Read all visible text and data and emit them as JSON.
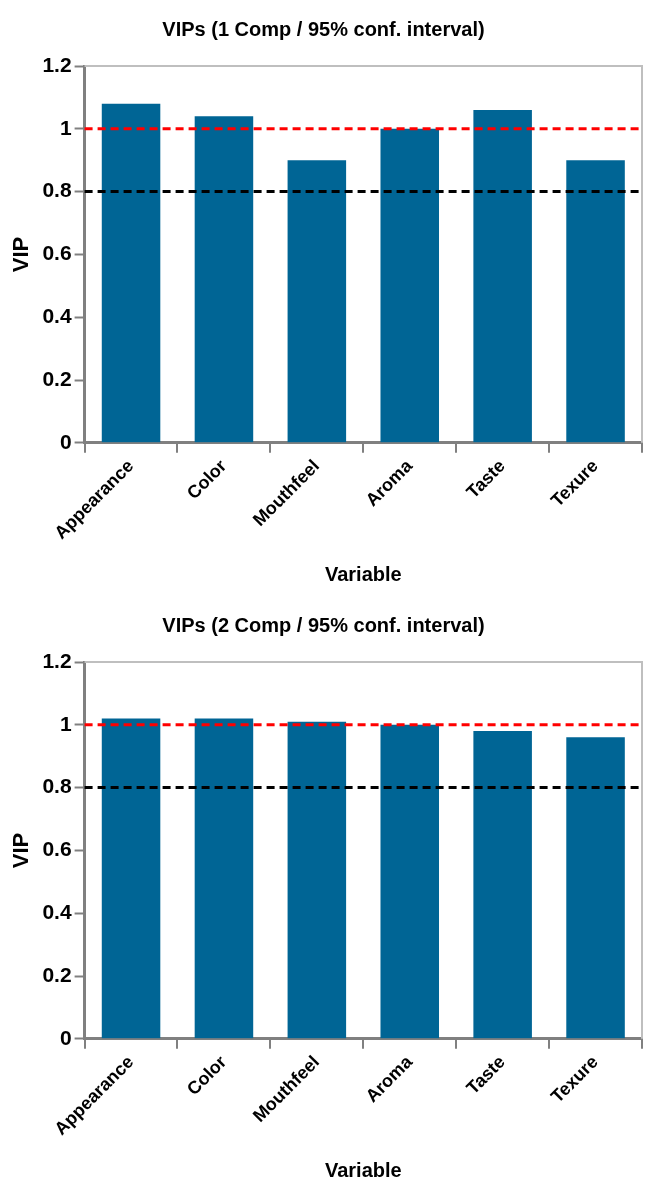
{
  "chart_data": [
    {
      "type": "bar",
      "title": "VIPs (1 Comp / 95% conf. interval)",
      "xlabel": "Variable",
      "ylabel": "VIP",
      "categories": [
        "Appearance",
        "Color",
        "Mouthfeel",
        "Aroma",
        "Taste",
        "Texure"
      ],
      "values": [
        1.08,
        1.04,
        0.9,
        1.0,
        1.06,
        0.9
      ],
      "color": "#006595",
      "ylim": [
        0,
        1.2
      ],
      "yticks": [
        0,
        0.2,
        0.4,
        0.6,
        0.8,
        1,
        1.2
      ],
      "grid": false,
      "ref_lines": [
        {
          "axis": "y",
          "value": 1,
          "color": "#ff0000",
          "line_style": "dashed"
        },
        {
          "axis": "y",
          "value": 0.8,
          "color": "#000000",
          "line_style": "dashed"
        }
      ]
    },
    {
      "type": "bar",
      "title": "VIPs (2 Comp / 95% conf. interval)",
      "xlabel": "Variable",
      "ylabel": "VIP",
      "categories": [
        "Appearance",
        "Color",
        "Mouthfeel",
        "Aroma",
        "Taste",
        "Texure"
      ],
      "values": [
        1.02,
        1.02,
        1.01,
        1.0,
        0.98,
        0.96
      ],
      "color": "#006595",
      "ylim": [
        0,
        1.2
      ],
      "yticks": [
        0,
        0.2,
        0.4,
        0.6,
        0.8,
        1,
        1.2
      ],
      "grid": false,
      "ref_lines": [
        {
          "axis": "y",
          "value": 1,
          "color": "#ff0000",
          "line_style": "dashed"
        },
        {
          "axis": "y",
          "value": 0.8,
          "color": "#000000",
          "line_style": "dashed"
        }
      ]
    }
  ]
}
